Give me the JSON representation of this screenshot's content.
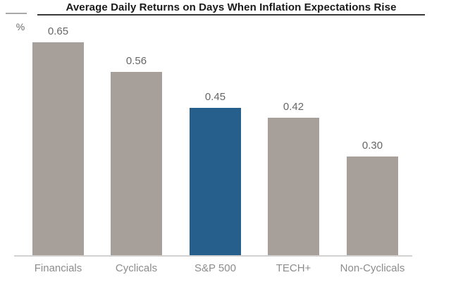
{
  "chart": {
    "unit_label": "%"
  },
  "chart_data": {
    "type": "bar",
    "title": "Average Daily Returns on Days When Inflation Expectations Rise",
    "categories": [
      "Financials",
      "Cyclicals",
      "S&P 500",
      "TECH+",
      "Non-Cyclicals"
    ],
    "values": [
      0.65,
      0.56,
      0.45,
      0.42,
      0.3
    ],
    "value_labels": [
      "0.65",
      "0.56",
      "0.45",
      "0.42",
      "0.30"
    ],
    "xlabel": "",
    "ylabel": "%",
    "ylim": [
      0,
      0.78
    ],
    "grid": false,
    "legend_position": "none",
    "highlight_category": "S&P 500",
    "bar_colors": [
      "#a79f99",
      "#a79f99",
      "#265f8c",
      "#a79f99",
      "#a79f99"
    ],
    "colors": {
      "bar_default": "#a79f99",
      "bar_highlight": "#265f8c",
      "axis_line": "#d2d2d2",
      "title_underline": "#3a3a3a",
      "value_label": "#666666",
      "category_label": "#8c8c8c",
      "title_text": "#1a1a1a"
    }
  }
}
